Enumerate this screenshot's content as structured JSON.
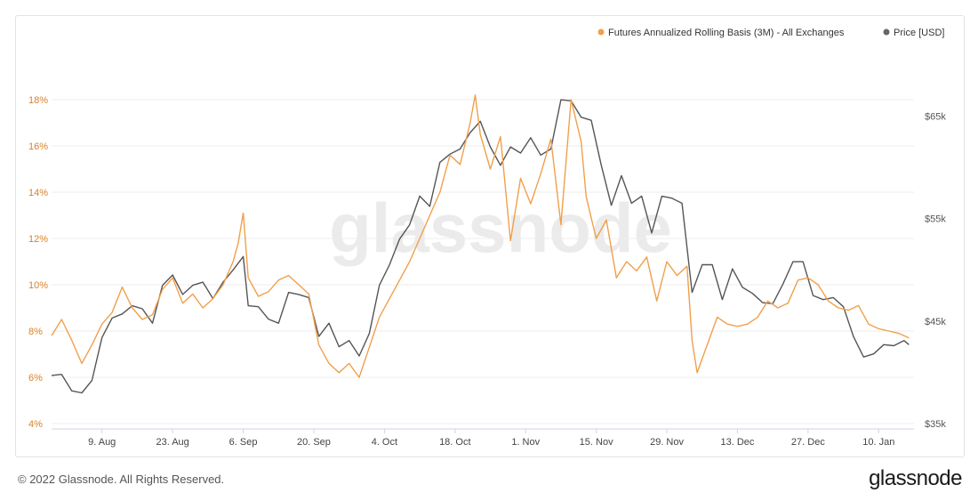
{
  "colors": {
    "basis": "#f0a04b",
    "price": "#555555",
    "grid": "#ececec",
    "left_axis_text": "#d9822b",
    "right_axis_text": "#555555",
    "x_axis_text": "#444444",
    "watermark": "#dcdcdc"
  },
  "footer": {
    "copyright": "© 2022 Glassnode. All Rights Reserved.",
    "brand": "glassnode"
  },
  "chart_data": {
    "type": "line",
    "watermark": "glassnode",
    "legend_position": "top-right",
    "legend": [
      {
        "label": "Futures Annualized Rolling Basis (3M) - All Exchanges",
        "color": "#f0a04b"
      },
      {
        "label": "Price [USD]",
        "color": "#666666"
      }
    ],
    "x_range": [
      "2021-07-30",
      "2022-01-17"
    ],
    "x_ticks": [
      {
        "date": "2021-08-09",
        "label": "9. Aug"
      },
      {
        "date": "2021-08-23",
        "label": "23. Aug"
      },
      {
        "date": "2021-09-06",
        "label": "6. Sep"
      },
      {
        "date": "2021-09-20",
        "label": "20. Sep"
      },
      {
        "date": "2021-10-04",
        "label": "4. Oct"
      },
      {
        "date": "2021-10-18",
        "label": "18. Oct"
      },
      {
        "date": "2021-11-01",
        "label": "1. Nov"
      },
      {
        "date": "2021-11-15",
        "label": "15. Nov"
      },
      {
        "date": "2021-11-29",
        "label": "29. Nov"
      },
      {
        "date": "2021-12-13",
        "label": "13. Dec"
      },
      {
        "date": "2021-12-27",
        "label": "27. Dec"
      },
      {
        "date": "2022-01-10",
        "label": "10. Jan"
      }
    ],
    "y_left": {
      "range": [
        4,
        19.5
      ],
      "ticks": [
        4,
        6,
        8,
        10,
        12,
        14,
        16,
        18
      ],
      "tick_labels": [
        "4%",
        "6%",
        "8%",
        "10%",
        "12%",
        "14%",
        "16%",
        "18%"
      ]
    },
    "y_right": {
      "range": [
        35000,
        70000
      ],
      "ticks": [
        35000,
        45000,
        55000,
        65000
      ],
      "tick_labels": [
        "$35k",
        "$45k",
        "$55k",
        "$65k"
      ]
    },
    "series": [
      {
        "name": "Futures Annualized Rolling Basis (3M) - All Exchanges",
        "axis": "left",
        "points": [
          [
            "2021-07-30",
            7.8
          ],
          [
            "2021-08-01",
            8.5
          ],
          [
            "2021-08-03",
            7.6
          ],
          [
            "2021-08-05",
            6.6
          ],
          [
            "2021-08-07",
            7.4
          ],
          [
            "2021-08-09",
            8.3
          ],
          [
            "2021-08-11",
            8.8
          ],
          [
            "2021-08-13",
            9.9
          ],
          [
            "2021-08-15",
            9.0
          ],
          [
            "2021-08-17",
            8.5
          ],
          [
            "2021-08-19",
            8.7
          ],
          [
            "2021-08-21",
            9.8
          ],
          [
            "2021-08-23",
            10.3
          ],
          [
            "2021-08-25",
            9.2
          ],
          [
            "2021-08-27",
            9.6
          ],
          [
            "2021-08-29",
            9.0
          ],
          [
            "2021-08-31",
            9.4
          ],
          [
            "2021-09-02",
            10.0
          ],
          [
            "2021-09-04",
            11.0
          ],
          [
            "2021-09-05",
            11.8
          ],
          [
            "2021-09-06",
            13.1
          ],
          [
            "2021-09-07",
            10.3
          ],
          [
            "2021-09-09",
            9.5
          ],
          [
            "2021-09-11",
            9.7
          ],
          [
            "2021-09-13",
            10.2
          ],
          [
            "2021-09-15",
            10.4
          ],
          [
            "2021-09-17",
            10.0
          ],
          [
            "2021-09-19",
            9.6
          ],
          [
            "2021-09-21",
            7.4
          ],
          [
            "2021-09-23",
            6.6
          ],
          [
            "2021-09-25",
            6.2
          ],
          [
            "2021-09-27",
            6.6
          ],
          [
            "2021-09-29",
            6.0
          ],
          [
            "2021-10-01",
            7.3
          ],
          [
            "2021-10-03",
            8.6
          ],
          [
            "2021-10-05",
            9.4
          ],
          [
            "2021-10-07",
            10.2
          ],
          [
            "2021-10-09",
            11.0
          ],
          [
            "2021-10-11",
            12.0
          ],
          [
            "2021-10-13",
            13.0
          ],
          [
            "2021-10-15",
            14.0
          ],
          [
            "2021-10-17",
            15.6
          ],
          [
            "2021-10-19",
            15.2
          ],
          [
            "2021-10-21",
            17.0
          ],
          [
            "2021-10-22",
            18.2
          ],
          [
            "2021-10-23",
            16.5
          ],
          [
            "2021-10-25",
            15.0
          ],
          [
            "2021-10-27",
            16.4
          ],
          [
            "2021-10-29",
            11.9
          ],
          [
            "2021-10-31",
            14.6
          ],
          [
            "2021-11-02",
            13.5
          ],
          [
            "2021-11-04",
            14.8
          ],
          [
            "2021-11-06",
            16.3
          ],
          [
            "2021-11-08",
            12.6
          ],
          [
            "2021-11-10",
            18.0
          ],
          [
            "2021-11-12",
            16.2
          ],
          [
            "2021-11-13",
            13.8
          ],
          [
            "2021-11-15",
            12.0
          ],
          [
            "2021-11-17",
            12.8
          ],
          [
            "2021-11-19",
            10.3
          ],
          [
            "2021-11-21",
            11.0
          ],
          [
            "2021-11-23",
            10.6
          ],
          [
            "2021-11-25",
            11.2
          ],
          [
            "2021-11-27",
            9.3
          ],
          [
            "2021-11-29",
            11.0
          ],
          [
            "2021-12-01",
            10.4
          ],
          [
            "2021-12-03",
            10.8
          ],
          [
            "2021-12-04",
            7.6
          ],
          [
            "2021-12-05",
            6.2
          ],
          [
            "2021-12-07",
            7.4
          ],
          [
            "2021-12-09",
            8.6
          ],
          [
            "2021-12-11",
            8.3
          ],
          [
            "2021-12-13",
            8.2
          ],
          [
            "2021-12-15",
            8.3
          ],
          [
            "2021-12-17",
            8.6
          ],
          [
            "2021-12-19",
            9.3
          ],
          [
            "2021-12-21",
            9.0
          ],
          [
            "2021-12-23",
            9.2
          ],
          [
            "2021-12-25",
            10.2
          ],
          [
            "2021-12-27",
            10.3
          ],
          [
            "2021-12-29",
            10.0
          ],
          [
            "2021-12-31",
            9.3
          ],
          [
            "2022-01-02",
            9.0
          ],
          [
            "2022-01-04",
            8.9
          ],
          [
            "2022-01-06",
            9.1
          ],
          [
            "2022-01-08",
            8.3
          ],
          [
            "2022-01-10",
            8.1
          ],
          [
            "2022-01-12",
            8.0
          ],
          [
            "2022-01-14",
            7.9
          ],
          [
            "2022-01-16",
            7.7
          ]
        ]
      },
      {
        "name": "Price [USD]",
        "axis": "right",
        "points": [
          [
            "2021-07-30",
            39700
          ],
          [
            "2021-08-01",
            39800
          ],
          [
            "2021-08-03",
            38200
          ],
          [
            "2021-08-05",
            38000
          ],
          [
            "2021-08-07",
            39200
          ],
          [
            "2021-08-09",
            43400
          ],
          [
            "2021-08-11",
            45300
          ],
          [
            "2021-08-13",
            45700
          ],
          [
            "2021-08-15",
            46500
          ],
          [
            "2021-08-17",
            46200
          ],
          [
            "2021-08-19",
            44800
          ],
          [
            "2021-08-21",
            48500
          ],
          [
            "2021-08-23",
            49500
          ],
          [
            "2021-08-25",
            47600
          ],
          [
            "2021-08-27",
            48500
          ],
          [
            "2021-08-29",
            48800
          ],
          [
            "2021-08-31",
            47200
          ],
          [
            "2021-09-02",
            48800
          ],
          [
            "2021-09-04",
            50000
          ],
          [
            "2021-09-06",
            51300
          ],
          [
            "2021-09-07",
            46500
          ],
          [
            "2021-09-09",
            46400
          ],
          [
            "2021-09-11",
            45200
          ],
          [
            "2021-09-13",
            44800
          ],
          [
            "2021-09-15",
            47800
          ],
          [
            "2021-09-17",
            47600
          ],
          [
            "2021-09-19",
            47300
          ],
          [
            "2021-09-21",
            43500
          ],
          [
            "2021-09-23",
            44800
          ],
          [
            "2021-09-25",
            42500
          ],
          [
            "2021-09-27",
            43100
          ],
          [
            "2021-09-29",
            41600
          ],
          [
            "2021-10-01",
            43800
          ],
          [
            "2021-10-03",
            48500
          ],
          [
            "2021-10-05",
            50500
          ],
          [
            "2021-10-07",
            53000
          ],
          [
            "2021-10-09",
            54400
          ],
          [
            "2021-10-11",
            57200
          ],
          [
            "2021-10-13",
            56200
          ],
          [
            "2021-10-15",
            60500
          ],
          [
            "2021-10-17",
            61300
          ],
          [
            "2021-10-19",
            61800
          ],
          [
            "2021-10-21",
            63400
          ],
          [
            "2021-10-23",
            64500
          ],
          [
            "2021-10-25",
            62000
          ],
          [
            "2021-10-27",
            60200
          ],
          [
            "2021-10-29",
            62000
          ],
          [
            "2021-10-31",
            61400
          ],
          [
            "2021-11-02",
            62900
          ],
          [
            "2021-11-04",
            61200
          ],
          [
            "2021-11-06",
            61800
          ],
          [
            "2021-11-08",
            66600
          ],
          [
            "2021-11-10",
            66500
          ],
          [
            "2021-11-12",
            64900
          ],
          [
            "2021-11-14",
            64600
          ],
          [
            "2021-11-16",
            60200
          ],
          [
            "2021-11-18",
            56300
          ],
          [
            "2021-11-20",
            59200
          ],
          [
            "2021-11-22",
            56500
          ],
          [
            "2021-11-24",
            57200
          ],
          [
            "2021-11-26",
            53600
          ],
          [
            "2021-11-28",
            57200
          ],
          [
            "2021-11-30",
            57000
          ],
          [
            "2021-12-02",
            56500
          ],
          [
            "2021-12-04",
            47800
          ],
          [
            "2021-12-06",
            50500
          ],
          [
            "2021-12-08",
            50500
          ],
          [
            "2021-12-10",
            47100
          ],
          [
            "2021-12-12",
            50100
          ],
          [
            "2021-12-14",
            48300
          ],
          [
            "2021-12-16",
            47700
          ],
          [
            "2021-12-18",
            46800
          ],
          [
            "2021-12-20",
            46700
          ],
          [
            "2021-12-22",
            48600
          ],
          [
            "2021-12-24",
            50800
          ],
          [
            "2021-12-26",
            50800
          ],
          [
            "2021-12-28",
            47500
          ],
          [
            "2021-12-30",
            47100
          ],
          [
            "2022-01-01",
            47300
          ],
          [
            "2022-01-03",
            46400
          ],
          [
            "2022-01-05",
            43500
          ],
          [
            "2022-01-07",
            41500
          ],
          [
            "2022-01-09",
            41800
          ],
          [
            "2022-01-11",
            42700
          ],
          [
            "2022-01-13",
            42600
          ],
          [
            "2022-01-15",
            43100
          ],
          [
            "2022-01-16",
            42700
          ]
        ]
      }
    ]
  }
}
